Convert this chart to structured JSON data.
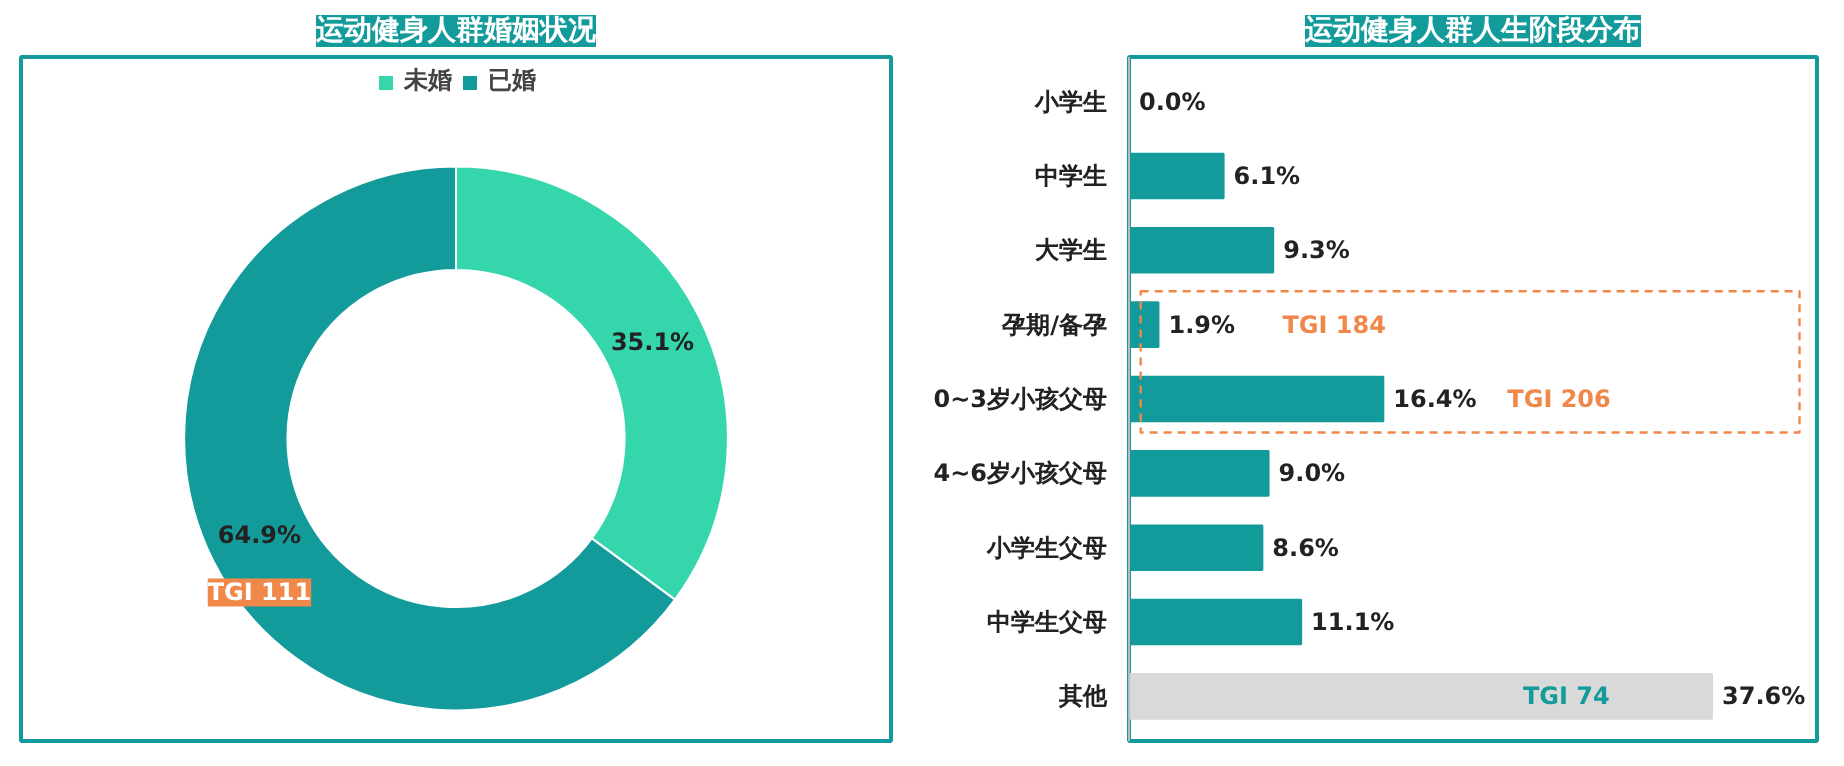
{
  "chart_data": [
    {
      "type": "donut",
      "title": "运动健身人群婚姻状况",
      "categories": [
        "未婚",
        "已婚"
      ],
      "values": [
        35.1,
        64.9
      ],
      "colors": [
        "#36d6ad",
        "#139a9b"
      ],
      "value_labels": [
        "35.1%",
        "64.9%"
      ],
      "legend": "top",
      "annotations": [
        "TGI 111"
      ]
    },
    {
      "type": "bar",
      "orientation": "horizontal",
      "title": "运动健身人群人生阶段分布",
      "categories": [
        "小学生",
        "中学生",
        "大学生",
        "孕期/备孕",
        "0~3岁小孩父母",
        "4~6岁小孩父母",
        "小学生父母",
        "中学生父母",
        "其他"
      ],
      "values": [
        0.0,
        6.1,
        9.3,
        1.9,
        16.4,
        9.0,
        8.6,
        11.1,
        37.6
      ],
      "colors": [
        "#139a9b",
        "#139a9b",
        "#139a9b",
        "#139a9b",
        "#139a9b",
        "#139a9b",
        "#139a9b",
        "#139a9b",
        "#d9d9d9"
      ],
      "value_labels": [
        "0.0%",
        "6.1%",
        "9.3%",
        "1.9%",
        "16.4%",
        "9.0%",
        "8.6%",
        "11.1%",
        "37.6%"
      ],
      "annotations": [
        "TGI 184",
        "TGI 206",
        {
          "text": "TGI 74",
          "x": 28.2,
          "y": "其他"
        }
      ]
    }
  ]
}
